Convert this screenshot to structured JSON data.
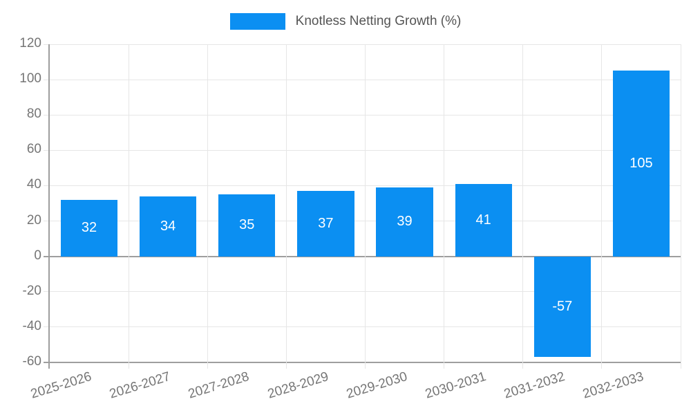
{
  "chart_data": {
    "type": "bar",
    "title": "Knotless Netting Growth (%)",
    "categories": [
      "2025-2026",
      "2026-2027",
      "2027-2028",
      "2028-2029",
      "2029-2030",
      "2030-2031",
      "2031-2032",
      "2032-2033"
    ],
    "values": [
      32,
      34,
      35,
      37,
      39,
      41,
      -57,
      105
    ],
    "xlabel": "",
    "ylabel": "",
    "ylim": [
      -60,
      120
    ],
    "ytick_step": 20,
    "grid": true,
    "legend_position": "top",
    "x_label_rotation_deg": -17,
    "bar_color": "#0b8ff2",
    "grid_color": "#e6e6e6",
    "axis_color": "#9e9e9e",
    "tick_label_color": "#757575",
    "legend_text_color": "#555555",
    "value_label_color": "#ffffff",
    "background_color": "#ffffff"
  }
}
